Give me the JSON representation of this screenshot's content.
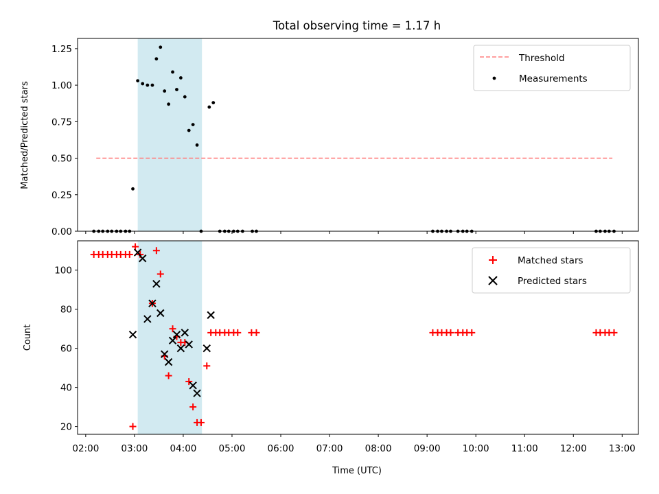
{
  "chart_data": [
    {
      "type": "scatter",
      "title": "Total observing time = 1.17 h",
      "ylabel": "Matched/Predicted stars",
      "xlabel": "",
      "xlim": [
        "01:50",
        "13:20"
      ],
      "ylim": [
        0,
        1.32
      ],
      "yticks": [
        "0.00",
        "0.25",
        "0.50",
        "0.75",
        "1.00",
        "1.25"
      ],
      "shaded_interval": [
        "03:04",
        "04:23"
      ],
      "shaded_color": "#add8e6",
      "legend_position": "top-right",
      "threshold": {
        "name": "Threshold",
        "value": 0.5,
        "x_range": [
          "02:13",
          "12:48"
        ],
        "color": "#ff7f7f",
        "style": "dashed"
      },
      "series": [
        {
          "name": "Measurements",
          "color": "#000000",
          "marker": "dot",
          "points": [
            [
              "02:10",
              0
            ],
            [
              "02:16",
              0
            ],
            [
              "02:21",
              0
            ],
            [
              "02:27",
              0
            ],
            [
              "02:32",
              0
            ],
            [
              "02:38",
              0
            ],
            [
              "02:43",
              0
            ],
            [
              "02:49",
              0
            ],
            [
              "02:54",
              0
            ],
            [
              "02:58",
              0.29
            ],
            [
              "03:04",
              1.03
            ],
            [
              "03:10",
              1.01
            ],
            [
              "03:16",
              1.0
            ],
            [
              "03:22",
              1.0
            ],
            [
              "03:27",
              1.18
            ],
            [
              "03:32",
              1.26
            ],
            [
              "03:37",
              0.96
            ],
            [
              "03:42",
              0.87
            ],
            [
              "03:47",
              1.09
            ],
            [
              "03:52",
              0.97
            ],
            [
              "03:57",
              1.05
            ],
            [
              "04:02",
              0.92
            ],
            [
              "04:07",
              0.69
            ],
            [
              "04:12",
              0.73
            ],
            [
              "04:17",
              0.59
            ],
            [
              "04:22",
              0
            ],
            [
              "04:32",
              0.85
            ],
            [
              "04:37",
              0.88
            ],
            [
              "04:45",
              0
            ],
            [
              "04:51",
              0
            ],
            [
              "04:56",
              0
            ],
            [
              "05:02",
              0
            ],
            [
              "05:07",
              0
            ],
            [
              "05:13",
              0
            ],
            [
              "05:25",
              0
            ],
            [
              "05:30",
              0
            ],
            [
              "09:07",
              0
            ],
            [
              "09:13",
              0
            ],
            [
              "09:18",
              0
            ],
            [
              "09:24",
              0
            ],
            [
              "09:29",
              0
            ],
            [
              "09:38",
              0
            ],
            [
              "09:44",
              0
            ],
            [
              "09:49",
              0
            ],
            [
              "09:55",
              0
            ],
            [
              "12:28",
              0
            ],
            [
              "12:33",
              0
            ],
            [
              "12:39",
              0
            ],
            [
              "12:44",
              0
            ],
            [
              "12:50",
              0
            ]
          ]
        }
      ]
    },
    {
      "type": "scatter",
      "title": "",
      "xlabel": "Time (UTC)",
      "ylabel": "Count",
      "xlim": [
        "01:50",
        "13:20"
      ],
      "ylim": [
        16,
        115
      ],
      "yticks": [
        "20",
        "40",
        "60",
        "80",
        "100"
      ],
      "xticks": [
        "02:00",
        "03:00",
        "04:00",
        "05:00",
        "06:00",
        "07:00",
        "08:00",
        "09:00",
        "10:00",
        "11:00",
        "12:00",
        "13:00"
      ],
      "shaded_interval": [
        "03:04",
        "04:23"
      ],
      "shaded_color": "#add8e6",
      "legend_position": "top-right",
      "series": [
        {
          "name": "Matched stars",
          "color": "#ff0000",
          "marker": "plus",
          "points": [
            [
              "02:10",
              108
            ],
            [
              "02:16",
              108
            ],
            [
              "02:21",
              108
            ],
            [
              "02:27",
              108
            ],
            [
              "02:32",
              108
            ],
            [
              "02:38",
              108
            ],
            [
              "02:43",
              108
            ],
            [
              "02:49",
              108
            ],
            [
              "02:54",
              108
            ],
            [
              "02:58",
              20
            ],
            [
              "03:01",
              112
            ],
            [
              "03:07",
              108
            ],
            [
              "03:22",
              83
            ],
            [
              "03:27",
              110
            ],
            [
              "03:32",
              98
            ],
            [
              "03:37",
              56
            ],
            [
              "03:42",
              46
            ],
            [
              "03:47",
              70
            ],
            [
              "03:52",
              66
            ],
            [
              "03:57",
              63
            ],
            [
              "04:02",
              63
            ],
            [
              "04:07",
              43
            ],
            [
              "04:12",
              30
            ],
            [
              "04:17",
              22
            ],
            [
              "04:22",
              22
            ],
            [
              "04:29",
              51
            ],
            [
              "04:34",
              68
            ],
            [
              "04:40",
              68
            ],
            [
              "04:45",
              68
            ],
            [
              "04:51",
              68
            ],
            [
              "04:56",
              68
            ],
            [
              "05:02",
              68
            ],
            [
              "05:07",
              68
            ],
            [
              "05:24",
              68
            ],
            [
              "05:30",
              68
            ],
            [
              "09:07",
              68
            ],
            [
              "09:13",
              68
            ],
            [
              "09:18",
              68
            ],
            [
              "09:24",
              68
            ],
            [
              "09:29",
              68
            ],
            [
              "09:38",
              68
            ],
            [
              "09:44",
              68
            ],
            [
              "09:49",
              68
            ],
            [
              "09:55",
              68
            ],
            [
              "12:28",
              68
            ],
            [
              "12:33",
              68
            ],
            [
              "12:39",
              68
            ],
            [
              "12:44",
              68
            ],
            [
              "12:50",
              68
            ]
          ]
        },
        {
          "name": "Predicted stars",
          "color": "#000000",
          "marker": "x",
          "points": [
            [
              "02:58",
              67
            ],
            [
              "03:04",
              109
            ],
            [
              "03:10",
              106
            ],
            [
              "03:16",
              75
            ],
            [
              "03:22",
              83
            ],
            [
              "03:27",
              93
            ],
            [
              "03:32",
              78
            ],
            [
              "03:37",
              57
            ],
            [
              "03:42",
              53
            ],
            [
              "03:47",
              64
            ],
            [
              "03:52",
              67
            ],
            [
              "03:57",
              60
            ],
            [
              "04:02",
              68
            ],
            [
              "04:07",
              62
            ],
            [
              "04:12",
              41
            ],
            [
              "04:17",
              37
            ],
            [
              "04:29",
              60
            ],
            [
              "04:34",
              77
            ]
          ]
        }
      ]
    }
  ]
}
